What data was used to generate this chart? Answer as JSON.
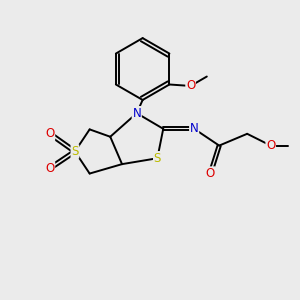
{
  "background_color": "#ebebeb",
  "figsize": [
    3.0,
    3.0
  ],
  "dpi": 100,
  "atom_colors": {
    "C": "#000000",
    "N": "#0000cc",
    "O": "#dd0000",
    "S_thiolane": "#bbbb00",
    "S_thiazoline": "#bbbb00"
  },
  "bond_lw": 1.4,
  "doffset": 0.055,
  "fs": 8.5
}
